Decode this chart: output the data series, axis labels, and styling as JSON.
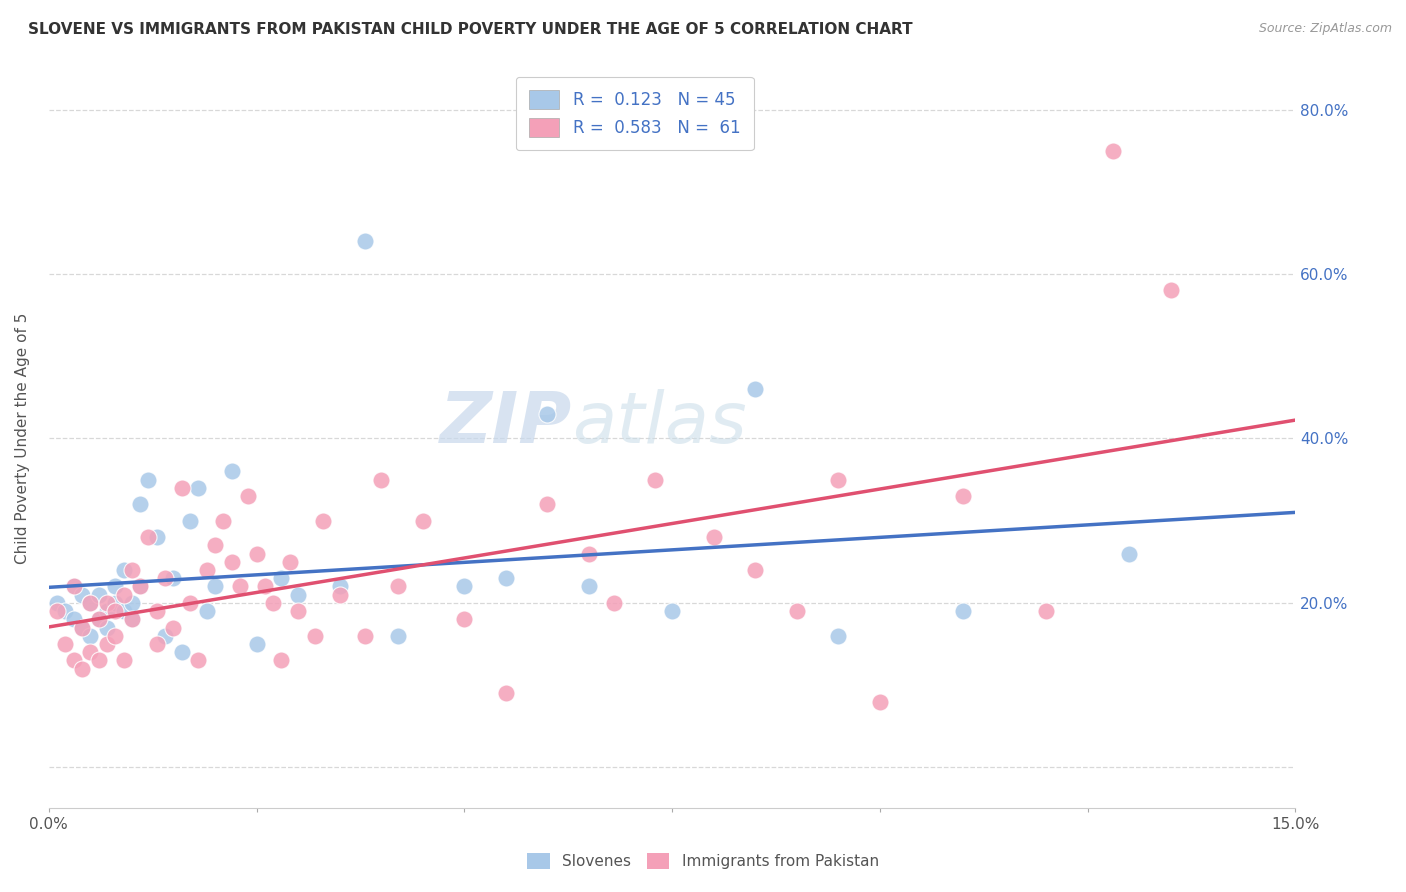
{
  "title": "SLOVENE VS IMMIGRANTS FROM PAKISTAN CHILD POVERTY UNDER THE AGE OF 5 CORRELATION CHART",
  "source": "Source: ZipAtlas.com",
  "ylabel": "Child Poverty Under the Age of 5",
  "xmin": 0.0,
  "xmax": 0.15,
  "ymin": -0.05,
  "ymax": 0.85,
  "slovenes_color": "#a8c8e8",
  "pakistan_color": "#f4a0b8",
  "slovenes_line_color": "#4472c4",
  "pakistan_line_color": "#e05070",
  "background_color": "#ffffff",
  "grid_color": "#d8d8d8",
  "watermark_zip": "ZIP",
  "watermark_atlas": "atlas",
  "slovenes_x": [
    0.001,
    0.002,
    0.003,
    0.003,
    0.004,
    0.004,
    0.005,
    0.005,
    0.006,
    0.006,
    0.007,
    0.007,
    0.008,
    0.008,
    0.009,
    0.009,
    0.01,
    0.01,
    0.011,
    0.011,
    0.012,
    0.013,
    0.014,
    0.015,
    0.016,
    0.017,
    0.018,
    0.019,
    0.02,
    0.022,
    0.025,
    0.028,
    0.03,
    0.035,
    0.038,
    0.042,
    0.05,
    0.055,
    0.06,
    0.065,
    0.075,
    0.085,
    0.095,
    0.11,
    0.13
  ],
  "slovenes_y": [
    0.2,
    0.19,
    0.22,
    0.18,
    0.17,
    0.21,
    0.2,
    0.16,
    0.21,
    0.18,
    0.19,
    0.17,
    0.2,
    0.22,
    0.19,
    0.24,
    0.18,
    0.2,
    0.32,
    0.22,
    0.35,
    0.28,
    0.16,
    0.23,
    0.14,
    0.3,
    0.34,
    0.19,
    0.22,
    0.36,
    0.15,
    0.23,
    0.21,
    0.22,
    0.64,
    0.16,
    0.22,
    0.23,
    0.43,
    0.22,
    0.19,
    0.46,
    0.16,
    0.19,
    0.26
  ],
  "pakistan_x": [
    0.001,
    0.002,
    0.003,
    0.003,
    0.004,
    0.004,
    0.005,
    0.005,
    0.006,
    0.006,
    0.007,
    0.007,
    0.008,
    0.008,
    0.009,
    0.009,
    0.01,
    0.01,
    0.011,
    0.012,
    0.013,
    0.013,
    0.014,
    0.015,
    0.016,
    0.017,
    0.018,
    0.019,
    0.02,
    0.021,
    0.022,
    0.023,
    0.024,
    0.025,
    0.026,
    0.027,
    0.028,
    0.029,
    0.03,
    0.032,
    0.033,
    0.035,
    0.038,
    0.04,
    0.042,
    0.045,
    0.05,
    0.055,
    0.06,
    0.065,
    0.068,
    0.073,
    0.08,
    0.085,
    0.09,
    0.095,
    0.1,
    0.11,
    0.12,
    0.128,
    0.135
  ],
  "pakistan_y": [
    0.19,
    0.15,
    0.22,
    0.13,
    0.17,
    0.12,
    0.2,
    0.14,
    0.18,
    0.13,
    0.2,
    0.15,
    0.19,
    0.16,
    0.21,
    0.13,
    0.18,
    0.24,
    0.22,
    0.28,
    0.15,
    0.19,
    0.23,
    0.17,
    0.34,
    0.2,
    0.13,
    0.24,
    0.27,
    0.3,
    0.25,
    0.22,
    0.33,
    0.26,
    0.22,
    0.2,
    0.13,
    0.25,
    0.19,
    0.16,
    0.3,
    0.21,
    0.16,
    0.35,
    0.22,
    0.3,
    0.18,
    0.09,
    0.32,
    0.26,
    0.2,
    0.35,
    0.28,
    0.24,
    0.19,
    0.35,
    0.08,
    0.33,
    0.19,
    0.75,
    0.58
  ]
}
